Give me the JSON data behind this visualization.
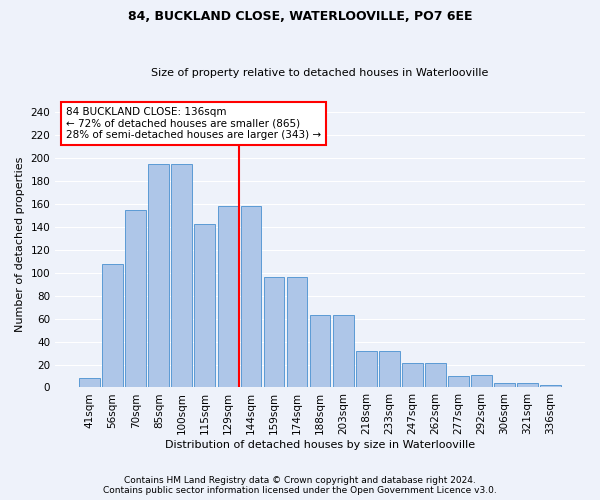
{
  "title": "84, BUCKLAND CLOSE, WATERLOOVILLE, PO7 6EE",
  "subtitle": "Size of property relative to detached houses in Waterlooville",
  "xlabel": "Distribution of detached houses by size in Waterlooville",
  "ylabel": "Number of detached properties",
  "categories": [
    "41sqm",
    "56sqm",
    "70sqm",
    "85sqm",
    "100sqm",
    "115sqm",
    "129sqm",
    "144sqm",
    "159sqm",
    "174sqm",
    "188sqm",
    "203sqm",
    "218sqm",
    "233sqm",
    "247sqm",
    "262sqm",
    "277sqm",
    "292sqm",
    "306sqm",
    "321sqm",
    "336sqm"
  ],
  "bar_heights": [
    8,
    108,
    155,
    195,
    195,
    143,
    158,
    158,
    96,
    96,
    63,
    63,
    32,
    32,
    21,
    21,
    10,
    11,
    4,
    4,
    2
  ],
  "bar_color": "#aec6e8",
  "bar_edge_color": "#5b9bd5",
  "annotation_text_line1": "84 BUCKLAND CLOSE: 136sqm",
  "annotation_text_line2": "← 72% of detached houses are smaller (865)",
  "annotation_text_line3": "28% of semi-detached houses are larger (343) →",
  "annotation_box_color": "white",
  "annotation_box_edge": "red",
  "vline_color": "red",
  "footer1": "Contains HM Land Registry data © Crown copyright and database right 2024.",
  "footer2": "Contains public sector information licensed under the Open Government Licence v3.0.",
  "ylim_max": 250,
  "yticks": [
    0,
    20,
    40,
    60,
    80,
    100,
    120,
    140,
    160,
    180,
    200,
    220,
    240
  ],
  "background_color": "#eef2fa",
  "grid_color": "white",
  "title_fontsize": 9,
  "subtitle_fontsize": 8,
  "ylabel_fontsize": 8,
  "xlabel_fontsize": 8,
  "tick_fontsize": 7.5,
  "footer_fontsize": 6.5,
  "annot_fontsize": 7.5
}
